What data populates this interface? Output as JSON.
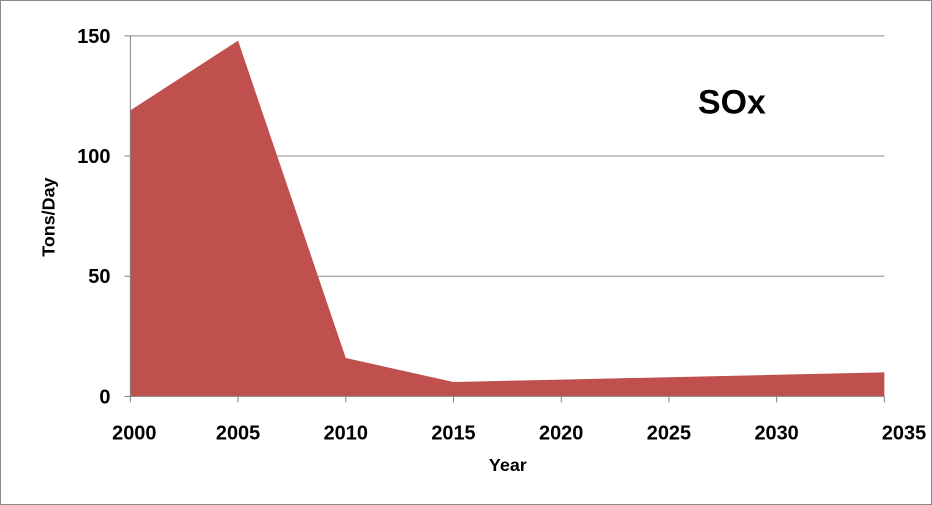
{
  "chart_data": {
    "type": "area",
    "title": "SOx",
    "xlabel": "Year",
    "ylabel": "Tons/Day",
    "x": [
      2000,
      2005,
      2010,
      2015,
      2020,
      2025,
      2030,
      2035
    ],
    "series": [
      {
        "values": [
          119,
          148,
          16,
          6,
          7,
          8,
          9,
          10
        ]
      }
    ],
    "xlim": [
      2000,
      2035
    ],
    "ylim": [
      0,
      150
    ],
    "y_ticks": [
      0,
      50,
      100,
      150
    ],
    "x_ticks": [
      2000,
      2005,
      2010,
      2015,
      2020,
      2025,
      2030,
      2035
    ],
    "grid": true,
    "legend": "none",
    "colors": {
      "area_fill": "#c0504d",
      "gridline": "#8c8c8c",
      "axis": "#808080"
    }
  }
}
